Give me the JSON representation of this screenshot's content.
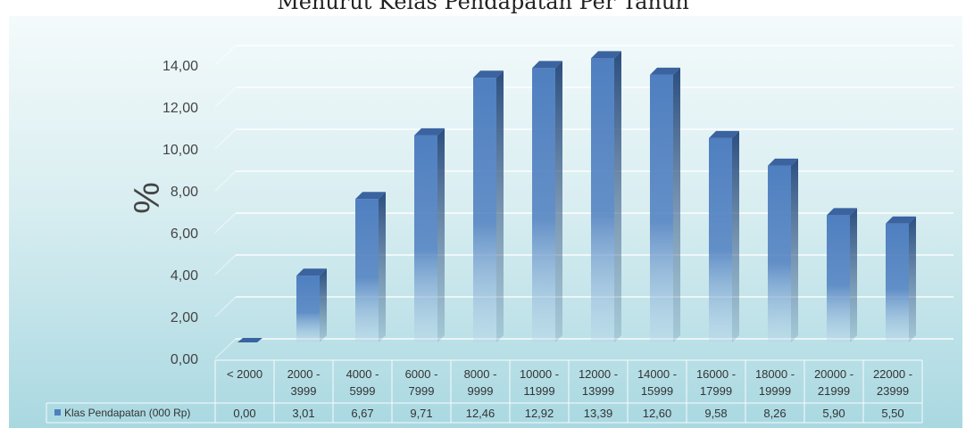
{
  "title": "Menurut Kelas Pendapatan Per Tahun",
  "colors": {
    "bar_front_top": "#4f7fc0",
    "bar_front_bottom": "#b9d5ea",
    "bar_side": "#2c4f80",
    "bar_top": "#3a63a0",
    "grid": "#ffffff",
    "text": "#444444"
  },
  "chart_data": {
    "type": "bar",
    "title": "Menurut Kelas Pendapatan Per Tahun",
    "xlabel": "",
    "ylabel": "%",
    "ylim": [
      0,
      14
    ],
    "yticks": [
      "0,00",
      "2,00",
      "4,00",
      "6,00",
      "8,00",
      "10,00",
      "12,00",
      "14,00"
    ],
    "grid": true,
    "categories": [
      [
        "< 2000"
      ],
      [
        "2000 -",
        "3999"
      ],
      [
        "4000 -",
        "5999"
      ],
      [
        "6000 -",
        "7999"
      ],
      [
        "8000 -",
        "9999"
      ],
      [
        "10000 -",
        "11999"
      ],
      [
        "12000 -",
        "13999"
      ],
      [
        "14000 -",
        "15999"
      ],
      [
        "16000 -",
        "17999"
      ],
      [
        "18000 -",
        "19999"
      ],
      [
        "20000 -",
        "21999"
      ],
      [
        "22000 -",
        "23999"
      ]
    ],
    "series": [
      {
        "name": "Klas Pendapatan (000 Rp)",
        "values": [
          0.0,
          3.01,
          6.67,
          9.71,
          12.46,
          12.92,
          13.39,
          12.6,
          9.58,
          8.26,
          5.9,
          5.5
        ],
        "labels": [
          "0,00",
          "3,01",
          "6,67",
          "9,71",
          "12,46",
          "12,92",
          "13,39",
          "12,60",
          "9,58",
          "8,26",
          "5,90",
          "5,50"
        ]
      }
    ],
    "data_table": true,
    "legend_position": "data-table"
  }
}
